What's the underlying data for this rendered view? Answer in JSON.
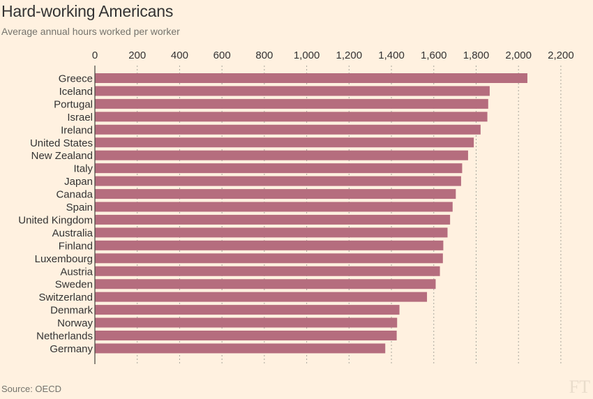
{
  "header": {
    "title": "Hard-working Americans",
    "subtitle": "Average annual hours worked per worker"
  },
  "footer": {
    "source": "Source: OECD",
    "logo": "FT"
  },
  "colors": {
    "background": "#fff1e0",
    "bar": "#b56d7e",
    "grid": "#a7a59b",
    "text": "#333333"
  },
  "chart_data": {
    "type": "bar",
    "orientation": "horizontal",
    "title": "Hard-working Americans",
    "subtitle": "Average annual hours worked per worker",
    "xlim": [
      0,
      2200
    ],
    "x_ticks": [
      0,
      200,
      400,
      600,
      800,
      1000,
      1200,
      1400,
      1600,
      1800,
      2000,
      2200
    ],
    "x_tick_labels": [
      "0",
      "200",
      "400",
      "600",
      "800",
      "1,000",
      "1,200",
      "1,400",
      "1,600",
      "1,800",
      "2,000",
      "2,200"
    ],
    "axis_position": "top",
    "grid": true,
    "categories": [
      "Greece",
      "Iceland",
      "Portugal",
      "Israel",
      "Ireland",
      "United States",
      "New Zealand",
      "Italy",
      "Japan",
      "Canada",
      "Spain",
      "United Kingdom",
      "Australia",
      "Finland",
      "Luxembourg",
      "Austria",
      "Sweden",
      "Switzerland",
      "Denmark",
      "Norway",
      "Netherlands",
      "Germany"
    ],
    "values": [
      2042,
      1864,
      1857,
      1853,
      1821,
      1789,
      1762,
      1734,
      1729,
      1704,
      1689,
      1677,
      1665,
      1645,
      1643,
      1629,
      1609,
      1568,
      1438,
      1427,
      1425,
      1371
    ]
  }
}
